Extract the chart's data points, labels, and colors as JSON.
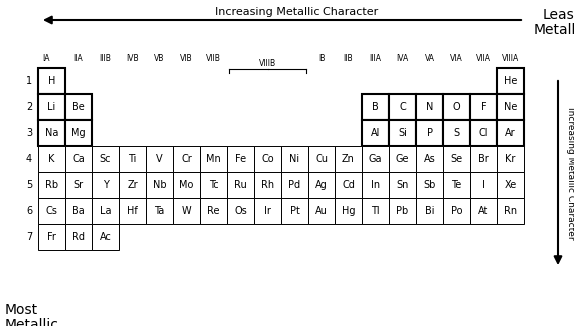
{
  "title_least": "Least\nMetallic",
  "title_most": "Most\nmetallic",
  "arrow_top_label": "Increasing Metallic Character",
  "arrow_right_label": "Increasing Metallic Character",
  "period_labels": [
    "1",
    "2",
    "3",
    "4",
    "5",
    "6",
    "7"
  ],
  "elements": [
    [
      "H",
      "",
      "",
      "",
      "",
      "",
      "",
      "",
      "",
      "",
      "",
      "",
      "",
      "",
      "",
      "",
      "",
      "He"
    ],
    [
      "Li",
      "Be",
      "",
      "",
      "",
      "",
      "",
      "",
      "",
      "",
      "",
      "",
      "B",
      "C",
      "N",
      "O",
      "F",
      "Ne"
    ],
    [
      "Na",
      "Mg",
      "",
      "",
      "",
      "",
      "",
      "",
      "",
      "",
      "",
      "",
      "Al",
      "Si",
      "P",
      "S",
      "Cl",
      "Ar"
    ],
    [
      "K",
      "Ca",
      "Sc",
      "Ti",
      "V",
      "Cr",
      "Mn",
      "Fe",
      "Co",
      "Ni",
      "Cu",
      "Zn",
      "Ga",
      "Ge",
      "As",
      "Se",
      "Br",
      "Kr"
    ],
    [
      "Rb",
      "Sr",
      "Y",
      "Zr",
      "Nb",
      "Mo",
      "Tc",
      "Ru",
      "Rh",
      "Pd",
      "Ag",
      "Cd",
      "In",
      "Sn",
      "Sb",
      "Te",
      "I",
      "Xe"
    ],
    [
      "Cs",
      "Ba",
      "La",
      "Hf",
      "Ta",
      "W",
      "Re",
      "Os",
      "Ir",
      "Pt",
      "Au",
      "Hg",
      "Tl",
      "Pb",
      "Bi",
      "Po",
      "At",
      "Rn"
    ],
    [
      "Fr",
      "Rd",
      "Ac",
      "",
      "",
      "",
      "",
      "",
      "",
      "",
      "",
      "",
      "",
      "",
      "",
      "",
      "",
      ""
    ]
  ],
  "simple_groups": {
    "0": "IA",
    "1": "IIA",
    "2": "IIIB",
    "3": "IVB",
    "4": "VB",
    "5": "VIB",
    "6": "VIIB",
    "10": "IB",
    "11": "IIB",
    "12": "IIIA",
    "13": "IVA",
    "14": "VA",
    "15": "VIA",
    "16": "VIIA",
    "17": "VIIIA"
  },
  "bg_color": "#ffffff",
  "cell_color": "#ffffff",
  "border_color": "#000000",
  "text_color": "#000000"
}
